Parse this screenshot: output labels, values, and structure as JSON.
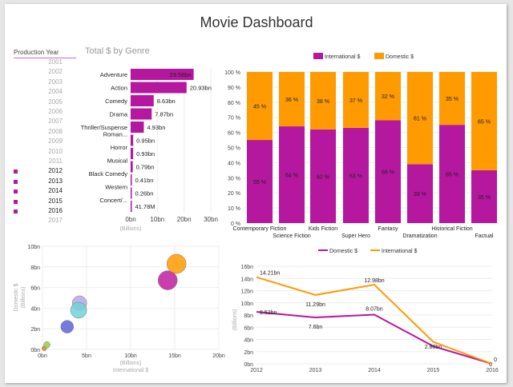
{
  "title": "Movie Dashboard",
  "slicer": {
    "label": "Production Year",
    "years": [
      "2001",
      "2002",
      "2003",
      "2004",
      "2005",
      "2006",
      "2007",
      "2008",
      "2009",
      "2010",
      "2011",
      "2012",
      "2013",
      "2014",
      "2015",
      "2016",
      "2017"
    ],
    "selected": [
      "2012",
      "2013",
      "2014",
      "2015",
      "2016"
    ]
  },
  "colors": {
    "magenta": "#b5179e",
    "orange": "#ff9a00"
  },
  "chart_data": [
    {
      "type": "bar",
      "orientation": "horizontal",
      "title": "Total $ by Genre",
      "categories": [
        "Adventure",
        "Action",
        "Comedy",
        "Drama",
        "Thriller/Suspense",
        "Roman...",
        "Horror",
        "Musical",
        "Black Comedy",
        "Western",
        "Concert/..."
      ],
      "values": [
        23.58,
        20.93,
        8.63,
        7.87,
        4.93,
        0.95,
        0.93,
        0.79,
        0.41,
        0.26,
        0.04178
      ],
      "data_labels": [
        "23.58bn",
        "20.93bn",
        "8.63bn",
        "7.87bn",
        "4.93bn",
        "0.95bn",
        "0.93bn",
        "0.79bn",
        "0.41bn",
        "0.26bn",
        "41.78M"
      ],
      "xticks": [
        "0bn",
        "10bn",
        "20bn",
        "30bn"
      ],
      "xlabel": "(Billions)",
      "xlim": [
        0,
        30
      ],
      "grid": true
    },
    {
      "type": "bar",
      "stacked": "100%",
      "categories": [
        "Contemporary Fiction",
        "Science Fiction",
        "Kids Fiction",
        "Super Hero",
        "Fantasy",
        "Dramatization",
        "Historical Fiction",
        "Factual"
      ],
      "series": [
        {
          "name": "International $",
          "values": [
            55,
            64,
            62,
            63,
            68,
            39,
            65,
            35
          ]
        },
        {
          "name": "Domestic $",
          "values": [
            45,
            36,
            38,
            37,
            32,
            61,
            35,
            65
          ]
        }
      ],
      "yticks": [
        "0 %",
        "10 %",
        "20 %",
        "30 %",
        "40 %",
        "50 %",
        "60 %",
        "70 %",
        "80 %",
        "90 %",
        "100 %"
      ],
      "legend": "top"
    },
    {
      "type": "scatter",
      "xlabel": "International $",
      "xsub": "(Billions)",
      "ylabel": "Domestic $",
      "ysub": "(Billions)",
      "xticks": [
        "0bn",
        "5bn",
        "10bn",
        "15bn",
        "20bn"
      ],
      "yticks": [
        "0bn",
        "2bn",
        "4bn",
        "6bn",
        "8bn",
        "10bn"
      ],
      "xlim": [
        0,
        20
      ],
      "ylim": [
        0,
        10
      ],
      "points": [
        {
          "x": 0.2,
          "y": 0.1,
          "size": 3,
          "color": "#d4891a"
        },
        {
          "x": 0.5,
          "y": 0.45,
          "size": 4,
          "color": "#9acd4a"
        },
        {
          "x": 2.8,
          "y": 2.2,
          "size": 8,
          "color": "#5b64d8"
        },
        {
          "x": 4.2,
          "y": 4.5,
          "size": 9,
          "color": "#b9a6e8"
        },
        {
          "x": 4.1,
          "y": 3.8,
          "size": 10,
          "color": "#6fd3d6"
        },
        {
          "x": 14.2,
          "y": 6.7,
          "size": 12,
          "color": "#c01f9e"
        },
        {
          "x": 15.2,
          "y": 8.3,
          "size": 12,
          "color": "#ff9a00"
        }
      ]
    },
    {
      "type": "line",
      "x": [
        "2012",
        "2013",
        "2014",
        "2015",
        "2016"
      ],
      "ylabel": "(Billions)",
      "yticks": [
        "0bn",
        "2bn",
        "4bn",
        "6bn",
        "8bn",
        "10bn",
        "12bn",
        "14bn",
        "16bn"
      ],
      "ylim": [
        0,
        16
      ],
      "legend": "top",
      "series": [
        {
          "name": "Domestic $",
          "values": [
            8.52,
            7.6,
            8.07,
            2.88,
            0
          ],
          "labels": [
            "8.52bn",
            "7.6bn",
            "8.07bn",
            "2.88bn",
            "0"
          ],
          "color": "#b5179e"
        },
        {
          "name": "International $",
          "values": [
            14.21,
            11.29,
            12.98,
            3.6,
            0
          ],
          "labels": [
            "14.21bn",
            "11.29bn",
            "12.98bn",
            "",
            "0"
          ],
          "color": "#ff9a00"
        }
      ]
    }
  ]
}
